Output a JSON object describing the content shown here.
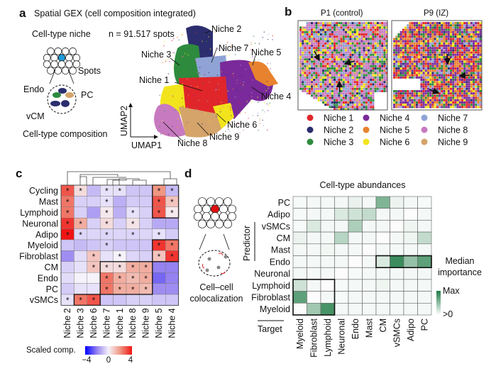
{
  "panel_a": {
    "letter": "a",
    "title": "Spatial GEX (cell composition integrated)",
    "niche_label": "Cell-type niche",
    "n_label": "n = 91.517 spots",
    "spots": "Spots",
    "endo": "Endo",
    "pc": "PC",
    "vcm": "vCM",
    "composition": "Cell-type composition",
    "umap1": "UMAP1",
    "umap2": "UMAP2",
    "niche_labels": [
      "Niche 2",
      "Niche 7",
      "Niche 5",
      "Niche 3",
      "Niche 1",
      "Niche 4",
      "Niche 6",
      "Niche 9",
      "Niche 8"
    ]
  },
  "panel_b": {
    "letter": "b",
    "p1": "P1 (control)",
    "p9": "P9 (IZ)",
    "legend": [
      {
        "label": "Niche 1",
        "color": "#e0262a"
      },
      {
        "label": "Niche 2",
        "color": "#2b2d6e"
      },
      {
        "label": "Niche 3",
        "color": "#2e8b3e"
      },
      {
        "label": "Niche 4",
        "color": "#7a2a9a"
      },
      {
        "label": "Niche 5",
        "color": "#e8822e"
      },
      {
        "label": "Niche 6",
        "color": "#f2e41c"
      },
      {
        "label": "Niche 7",
        "color": "#8fa3d6"
      },
      {
        "label": "Niche 8",
        "color": "#c87ac0"
      },
      {
        "label": "Niche 9",
        "color": "#d4a46a"
      }
    ]
  },
  "panel_c": {
    "letter": "c",
    "legend_title": "Scaled comp.",
    "ticks": [
      "−4",
      "0",
      "4"
    ]
  },
  "panel_d": {
    "letter": "d",
    "colocalization": [
      "Cell–cell",
      "colocalization"
    ],
    "predictor": "Predictor",
    "target": "Target",
    "legend_title": [
      "Median",
      "importance"
    ],
    "legend_max": "Max",
    "legend_min": ">0"
  },
  "chart_data": [
    {
      "type": "heatmap",
      "id": "c",
      "rows": [
        "Cycling",
        "Mast",
        "Lymphoid",
        "Neuronal",
        "Adipo",
        "Myeloid",
        "Fibroblast",
        "CM",
        "Endo",
        "PC",
        "vSMCs"
      ],
      "columns": [
        "Niche 2",
        "Niche 3",
        "Niche 6",
        "Niche 7",
        "Niche 1",
        "Niche 8",
        "Niche 9",
        "Niche 5",
        "Niche 4"
      ],
      "values": [
        [
          3.0,
          0.5,
          -1.0,
          -0.3,
          -0.3,
          -0.8,
          -0.8,
          2.0,
          -1.0
        ],
        [
          2.5,
          -0.6,
          -0.6,
          -0.3,
          -1.2,
          -0.7,
          -0.7,
          3.0,
          1.0
        ],
        [
          2.5,
          -0.6,
          -1.5,
          0.2,
          -1.2,
          -0.3,
          -0.6,
          3.0,
          0.2
        ],
        [
          3.5,
          1.5,
          -0.6,
          0.5,
          -0.6,
          0.3,
          -0.6,
          -1.3,
          -1.3
        ],
        [
          4.5,
          -0.5,
          -0.5,
          -0.5,
          -0.5,
          -0.5,
          -0.5,
          -0.3,
          -0.7
        ],
        [
          -0.8,
          -1.0,
          -0.8,
          -0.6,
          -0.8,
          -0.8,
          -0.8,
          3.5,
          2.5
        ],
        [
          -1.8,
          -0.4,
          1.0,
          -0.3,
          0.0,
          -0.5,
          -0.6,
          1.0,
          3.5
        ],
        [
          -0.6,
          -0.3,
          1.0,
          0.5,
          0.5,
          1.5,
          1.5,
          -2.0,
          -2.0
        ],
        [
          -0.4,
          0.0,
          0.0,
          2.5,
          1.5,
          1.2,
          1.5,
          -2.5,
          -2.0
        ],
        [
          -0.7,
          -0.3,
          -0.3,
          2.5,
          1.5,
          1.5,
          1.2,
          -1.8,
          -1.8
        ],
        [
          -0.3,
          2.5,
          3.0,
          -0.8,
          -0.8,
          -0.6,
          -0.6,
          -0.8,
          -0.8
        ]
      ],
      "significant": [
        [
          0,
          1,
          3,
          4,
          7,
          8
        ],
        [
          0,
          3,
          7,
          8
        ],
        [
          0,
          3,
          5,
          7,
          8
        ],
        [
          0,
          1,
          3,
          5
        ],
        [
          0,
          1,
          3,
          5,
          7
        ],
        [
          3,
          7,
          8
        ],
        [
          2,
          4,
          7,
          8
        ],
        [
          2,
          3,
          4,
          5,
          6
        ],
        [
          3,
          4,
          5,
          6
        ],
        [
          3,
          4,
          5,
          6
        ],
        [
          0,
          1,
          2
        ]
      ],
      "significance_mark": "*",
      "color_range": [
        -4,
        4
      ],
      "colorbar_label": "Scaled comp."
    },
    {
      "type": "heatmap",
      "id": "d",
      "title": "Cell-type abundances",
      "rows": [
        "PC",
        "Adipo",
        "vSMCs",
        "CM",
        "Mast",
        "Endo",
        "Neuronal",
        "Lymphoid",
        "Fibroblast",
        "Myeloid"
      ],
      "columns": [
        "Myeloid",
        "Fibroblast",
        "Lymphoid",
        "Neuronal",
        "Endo",
        "Mast",
        "CM",
        "vSMCs",
        "Adipo",
        "PC"
      ],
      "values": [
        [
          0.02,
          0.03,
          0.03,
          0.03,
          0.08,
          0.03,
          0.55,
          0.06,
          0.03,
          0.02
        ],
        [
          0.02,
          0.03,
          0.03,
          0.15,
          0.2,
          0.25,
          0.03,
          0.03,
          0.0,
          0.03
        ],
        [
          0.02,
          0.15,
          0.03,
          0.03,
          0.35,
          0.03,
          0.03,
          0.0,
          0.05,
          0.03
        ],
        [
          0.07,
          0.03,
          0.03,
          0.3,
          0.03,
          0.03,
          0.0,
          0.03,
          0.05,
          0.25
        ],
        [
          0.03,
          0.03,
          0.04,
          0.03,
          0.03,
          0.0,
          0.03,
          0.03,
          0.03,
          0.03
        ],
        [
          0.03,
          0.03,
          0.03,
          0.03,
          0.0,
          0.03,
          0.15,
          0.85,
          0.45,
          0.7
        ],
        [
          0.03,
          0.02,
          0.03,
          0.0,
          0.02,
          0.03,
          0.03,
          0.03,
          0.03,
          0.03
        ],
        [
          0.2,
          0.03,
          0.0,
          0.02,
          0.03,
          0.03,
          0.05,
          0.03,
          0.03,
          0.03
        ],
        [
          0.7,
          0.0,
          0.03,
          0.02,
          0.03,
          0.03,
          0.03,
          0.03,
          0.03,
          0.03
        ],
        [
          0.0,
          0.4,
          0.8,
          0.03,
          0.03,
          0.03,
          0.03,
          0.03,
          0.03,
          0.03
        ]
      ],
      "ylabel": "Predictor",
      "xlabel": "Target",
      "colorbar_label": "Median importance",
      "color_range": [
        ">0",
        "Max"
      ]
    }
  ]
}
